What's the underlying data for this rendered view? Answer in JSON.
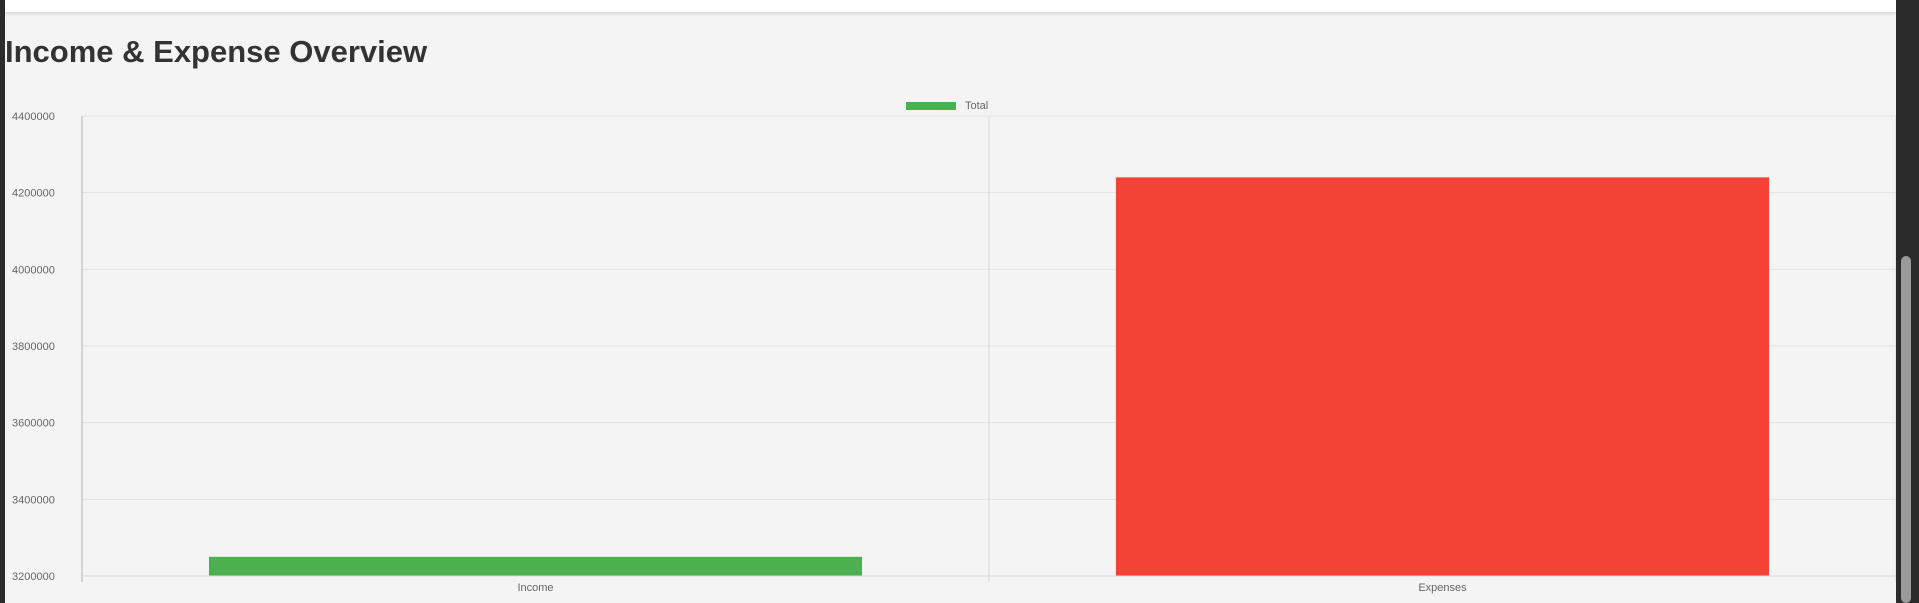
{
  "page": {
    "title": "Income & Expense Overview"
  },
  "chart_data": {
    "type": "bar",
    "categories": [
      "Income",
      "Expenses"
    ],
    "series": [
      {
        "name": "Total",
        "values": [
          3250000,
          4240000
        ],
        "colors": [
          "#4caf50",
          "#f44336"
        ]
      }
    ],
    "legend": {
      "label": "Total",
      "color": "#4caf50",
      "placement": "top-center"
    },
    "ylim": [
      3200000,
      4400000
    ],
    "yticks": [
      "3200000",
      "3400000",
      "3600000",
      "3800000",
      "4000000",
      "4200000",
      "4400000"
    ],
    "grid": true,
    "xlabel": "",
    "ylabel": ""
  }
}
